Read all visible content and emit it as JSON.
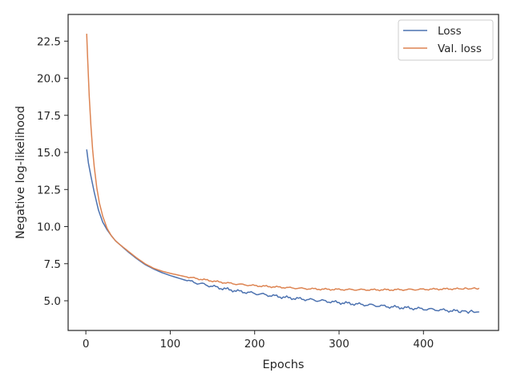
{
  "chart_data": {
    "type": "line",
    "title": "",
    "xlabel": "Epochs",
    "ylabel": "Negative log-likelihood",
    "xlim": [
      -21,
      489
    ],
    "ylim": [
      3.0,
      24.3
    ],
    "xticks": [
      0,
      100,
      200,
      300,
      400
    ],
    "yticks": [
      5.0,
      7.5,
      10.0,
      12.5,
      15.0,
      17.5,
      20.0,
      22.5
    ],
    "grid": false,
    "legend_position": "top-right",
    "series": [
      {
        "name": "Loss",
        "color": "#4c72b0",
        "points": [
          [
            1,
            15.2
          ],
          [
            3,
            14.3
          ],
          [
            6,
            13.4
          ],
          [
            10,
            12.3
          ],
          [
            15,
            11.1
          ],
          [
            20,
            10.3
          ],
          [
            25,
            9.8
          ],
          [
            30,
            9.4
          ],
          [
            35,
            9.05
          ],
          [
            40,
            8.8
          ],
          [
            50,
            8.3
          ],
          [
            60,
            7.85
          ],
          [
            70,
            7.45
          ],
          [
            80,
            7.15
          ],
          [
            90,
            6.9
          ],
          [
            100,
            6.7
          ],
          [
            120,
            6.35
          ],
          [
            140,
            6.1
          ],
          [
            160,
            5.85
          ],
          [
            180,
            5.65
          ],
          [
            200,
            5.5
          ],
          [
            220,
            5.35
          ],
          [
            240,
            5.2
          ],
          [
            260,
            5.1
          ],
          [
            280,
            5.0
          ],
          [
            300,
            4.88
          ],
          [
            320,
            4.78
          ],
          [
            340,
            4.7
          ],
          [
            360,
            4.6
          ],
          [
            380,
            4.52
          ],
          [
            400,
            4.45
          ],
          [
            420,
            4.38
          ],
          [
            440,
            4.3
          ],
          [
            455,
            4.27
          ],
          [
            466,
            4.25
          ]
        ]
      },
      {
        "name": "Val. loss",
        "color": "#dd8452",
        "points": [
          [
            1,
            23.0
          ],
          [
            2,
            21.5
          ],
          [
            4,
            18.8
          ],
          [
            6,
            16.8
          ],
          [
            8,
            15.2
          ],
          [
            10,
            14.0
          ],
          [
            13,
            12.6
          ],
          [
            16,
            11.6
          ],
          [
            20,
            10.7
          ],
          [
            25,
            9.9
          ],
          [
            30,
            9.4
          ],
          [
            35,
            9.05
          ],
          [
            40,
            8.8
          ],
          [
            50,
            8.35
          ],
          [
            60,
            7.9
          ],
          [
            70,
            7.5
          ],
          [
            80,
            7.2
          ],
          [
            90,
            7.0
          ],
          [
            100,
            6.85
          ],
          [
            120,
            6.6
          ],
          [
            140,
            6.42
          ],
          [
            160,
            6.25
          ],
          [
            180,
            6.12
          ],
          [
            200,
            6.02
          ],
          [
            220,
            5.95
          ],
          [
            240,
            5.88
          ],
          [
            260,
            5.82
          ],
          [
            280,
            5.78
          ],
          [
            300,
            5.76
          ],
          [
            320,
            5.75
          ],
          [
            340,
            5.74
          ],
          [
            360,
            5.74
          ],
          [
            380,
            5.75
          ],
          [
            400,
            5.77
          ],
          [
            420,
            5.79
          ],
          [
            440,
            5.81
          ],
          [
            455,
            5.82
          ],
          [
            466,
            5.85
          ]
        ]
      }
    ]
  }
}
